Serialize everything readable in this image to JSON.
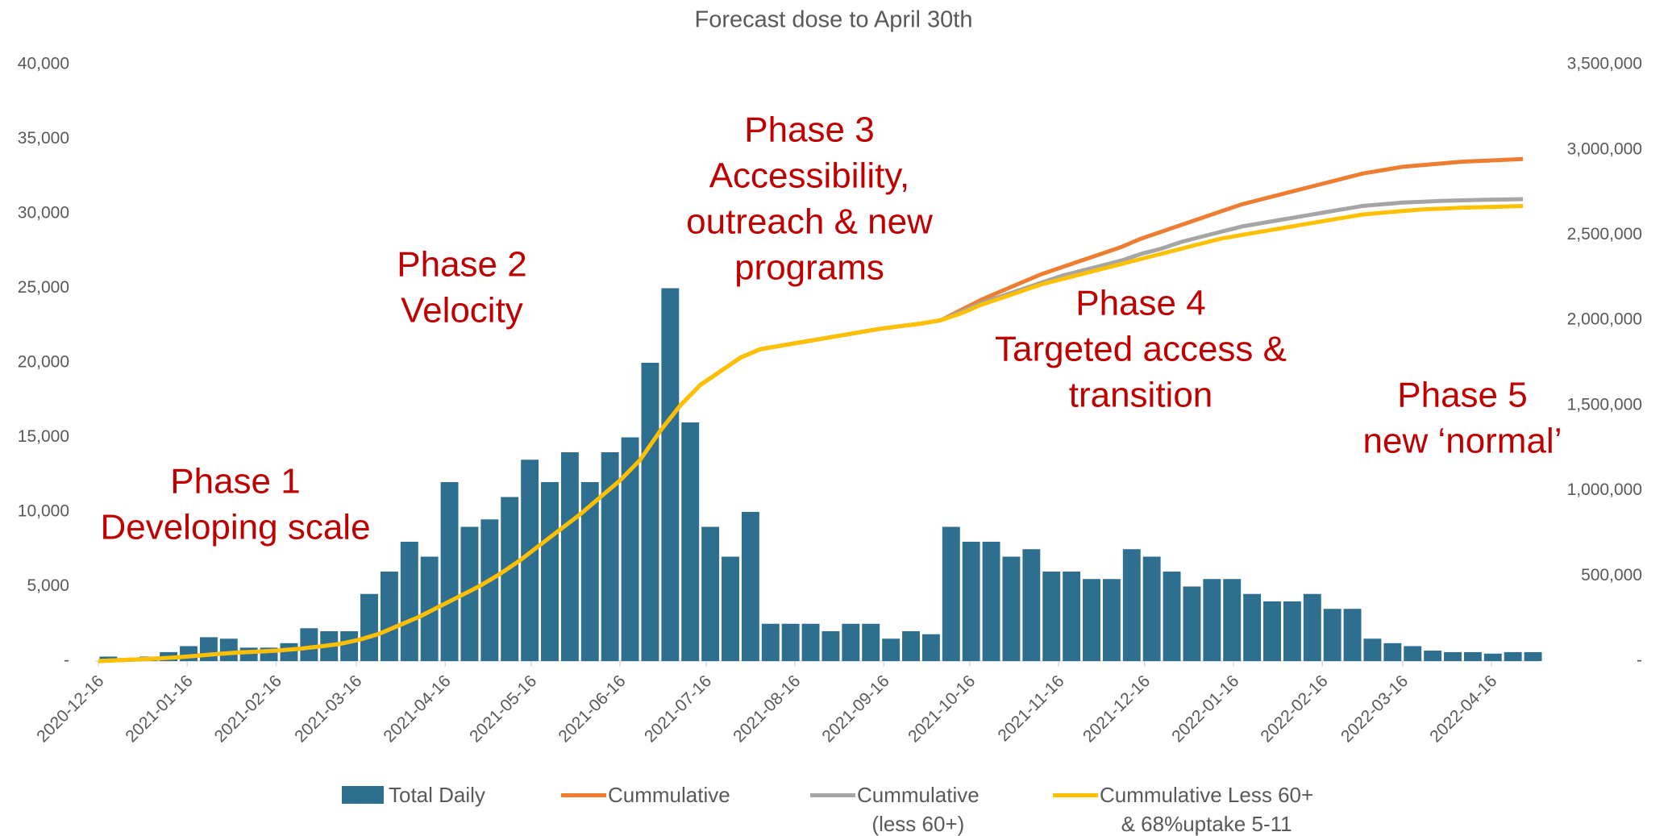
{
  "chart_data": {
    "type": "bar-line",
    "title": "Forecast dose to April 30th",
    "x": [
      "2020-12-16",
      "2020-12-23",
      "2020-12-30",
      "2021-01-06",
      "2021-01-13",
      "2021-01-20",
      "2021-01-27",
      "2021-02-03",
      "2021-02-10",
      "2021-02-17",
      "2021-02-24",
      "2021-03-03",
      "2021-03-10",
      "2021-03-17",
      "2021-03-24",
      "2021-03-31",
      "2021-04-07",
      "2021-04-14",
      "2021-04-21",
      "2021-04-28",
      "2021-05-05",
      "2021-05-12",
      "2021-05-19",
      "2021-05-26",
      "2021-06-02",
      "2021-06-09",
      "2021-06-16",
      "2021-06-23",
      "2021-06-30",
      "2021-07-07",
      "2021-07-14",
      "2021-07-21",
      "2021-07-28",
      "2021-08-04",
      "2021-08-11",
      "2021-08-18",
      "2021-08-25",
      "2021-09-01",
      "2021-09-08",
      "2021-09-15",
      "2021-09-22",
      "2021-09-29",
      "2021-10-06",
      "2021-10-13",
      "2021-10-20",
      "2021-10-27",
      "2021-11-03",
      "2021-11-10",
      "2021-11-17",
      "2021-11-24",
      "2021-12-01",
      "2021-12-08",
      "2021-12-15",
      "2021-12-22",
      "2021-12-29",
      "2022-01-05",
      "2022-01-12",
      "2022-01-19",
      "2022-01-26",
      "2022-02-02",
      "2022-02-09",
      "2022-02-16",
      "2022-02-23",
      "2022-03-02",
      "2022-03-09",
      "2022-03-16",
      "2022-03-23",
      "2022-03-30",
      "2022-04-06",
      "2022-04-13",
      "2022-04-20",
      "2022-04-27"
    ],
    "series": [
      {
        "name": "Total Daily",
        "kind": "bar",
        "color": "#2e6e8e",
        "values": [
          300,
          200,
          300,
          600,
          1000,
          1600,
          1500,
          900,
          900,
          1200,
          2200,
          2000,
          2000,
          4500,
          6000,
          8000,
          7000,
          12000,
          9000,
          9500,
          11000,
          13500,
          12000,
          14000,
          12000,
          14000,
          15000,
          20000,
          25000,
          16000,
          9000,
          7000,
          10000,
          2500,
          2500,
          2500,
          2000,
          2500,
          2500,
          1500,
          2000,
          1800,
          9000,
          8000,
          8000,
          7000,
          7500,
          6000,
          6000,
          5500,
          5500,
          7500,
          7000,
          6000,
          5000,
          5500,
          5500,
          4500,
          4000,
          4000,
          4500,
          3500,
          3500,
          1500,
          1200,
          1000,
          700,
          600,
          600,
          500,
          600,
          600
        ]
      },
      {
        "name": "Cummulative",
        "kind": "line",
        "axis": "y2",
        "color": "#ed7d31",
        "values": [
          0,
          5000,
          10000,
          15000,
          22000,
          32000,
          42000,
          50000,
          56000,
          62000,
          72000,
          85000,
          100000,
          125000,
          160000,
          210000,
          260000,
          320000,
          380000,
          440000,
          510000,
          590000,
          680000,
          770000,
          860000,
          960000,
          1060000,
          1180000,
          1350000,
          1500000,
          1620000,
          1700000,
          1780000,
          1830000,
          1850000,
          1870000,
          1890000,
          1910000,
          1930000,
          1950000,
          1965000,
          1980000,
          2000000,
          2060000,
          2120000,
          2170000,
          2220000,
          2270000,
          2310000,
          2350000,
          2390000,
          2430000,
          2480000,
          2520000,
          2560000,
          2600000,
          2640000,
          2680000,
          2710000,
          2740000,
          2770000,
          2800000,
          2830000,
          2860000,
          2880000,
          2900000,
          2910000,
          2920000,
          2930000,
          2935000,
          2940000,
          2945000
        ]
      },
      {
        "name": "Cummulative\n(less 60+)",
        "kind": "line",
        "axis": "y2",
        "color": "#a5a5a5",
        "values": [
          0,
          5000,
          10000,
          15000,
          22000,
          32000,
          42000,
          50000,
          56000,
          62000,
          72000,
          85000,
          100000,
          125000,
          160000,
          210000,
          260000,
          320000,
          380000,
          440000,
          510000,
          590000,
          680000,
          770000,
          860000,
          960000,
          1060000,
          1180000,
          1350000,
          1500000,
          1620000,
          1700000,
          1780000,
          1830000,
          1850000,
          1870000,
          1890000,
          1910000,
          1930000,
          1950000,
          1965000,
          1980000,
          2000000,
          2050000,
          2100000,
          2140000,
          2180000,
          2220000,
          2260000,
          2290000,
          2320000,
          2350000,
          2390000,
          2420000,
          2460000,
          2490000,
          2520000,
          2550000,
          2570000,
          2590000,
          2610000,
          2630000,
          2650000,
          2670000,
          2680000,
          2690000,
          2695000,
          2700000,
          2703000,
          2706000,
          2708000,
          2710000
        ]
      },
      {
        "name": "Cummulative Less 60+\n& 68%uptake 5-11",
        "kind": "line",
        "axis": "y2",
        "color": "#ffc000",
        "values": [
          0,
          5000,
          10000,
          15000,
          22000,
          32000,
          42000,
          50000,
          56000,
          62000,
          72000,
          85000,
          100000,
          125000,
          160000,
          210000,
          260000,
          320000,
          380000,
          440000,
          510000,
          590000,
          680000,
          770000,
          860000,
          960000,
          1060000,
          1180000,
          1350000,
          1500000,
          1620000,
          1700000,
          1780000,
          1830000,
          1850000,
          1870000,
          1890000,
          1910000,
          1930000,
          1950000,
          1965000,
          1980000,
          2000000,
          2040000,
          2090000,
          2130000,
          2170000,
          2210000,
          2240000,
          2270000,
          2300000,
          2330000,
          2360000,
          2390000,
          2420000,
          2450000,
          2480000,
          2500000,
          2520000,
          2540000,
          2560000,
          2580000,
          2600000,
          2620000,
          2630000,
          2640000,
          2650000,
          2655000,
          2660000,
          2663000,
          2666000,
          2670000
        ]
      }
    ],
    "xticks": [
      "2020-12-16",
      "2021-01-16",
      "2021-02-16",
      "2021-03-16",
      "2021-04-16",
      "2021-05-16",
      "2021-06-16",
      "2021-07-16",
      "2021-08-16",
      "2021-09-16",
      "2021-10-16",
      "2021-11-16",
      "2021-12-16",
      "2022-01-16",
      "2022-02-16",
      "2022-03-16",
      "2022-04-16"
    ],
    "ylim": [
      0,
      40000
    ],
    "yticks": [
      {
        "value": 0,
        "label": "-"
      },
      {
        "value": 5000,
        "label": "5,000"
      },
      {
        "value": 10000,
        "label": "10,000"
      },
      {
        "value": 15000,
        "label": "15,000"
      },
      {
        "value": 20000,
        "label": "20,000"
      },
      {
        "value": 25000,
        "label": "25,000"
      },
      {
        "value": 30000,
        "label": "30,000"
      },
      {
        "value": 35000,
        "label": "35,000"
      },
      {
        "value": 40000,
        "label": "40,000"
      }
    ],
    "y2lim": [
      0,
      3500000
    ],
    "y2ticks": [
      {
        "value": 0,
        "label": "-"
      },
      {
        "value": 500000,
        "label": "500,000"
      },
      {
        "value": 1000000,
        "label": "1,000,000"
      },
      {
        "value": 1500000,
        "label": "1,500,000"
      },
      {
        "value": 2000000,
        "label": "2,000,000"
      },
      {
        "value": 2500000,
        "label": "2,500,000"
      },
      {
        "value": 3000000,
        "label": "3,000,000"
      },
      {
        "value": 3500000,
        "label": "3,500,000"
      }
    ],
    "annotations": [
      {
        "lines": [
          "Phase 1",
          "Developing scale"
        ]
      },
      {
        "lines": [
          "Phase 2",
          "Velocity"
        ]
      },
      {
        "lines": [
          "Phase 3",
          "Accessibility,",
          "outreach & new",
          "programs"
        ]
      },
      {
        "lines": [
          "Phase 4",
          "Targeted access &",
          "transition"
        ]
      },
      {
        "lines": [
          "Phase 5",
          "new ‘normal’"
        ]
      }
    ],
    "legend": "bottom"
  }
}
